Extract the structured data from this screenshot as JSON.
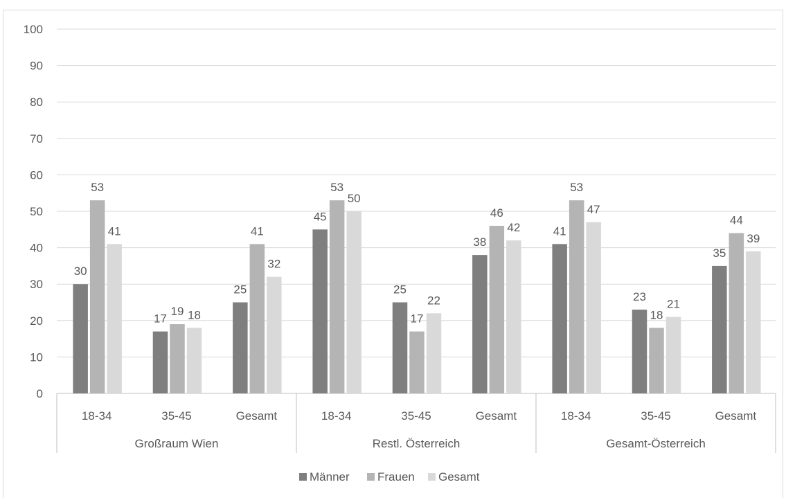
{
  "chart_data": {
    "type": "bar",
    "ylim": [
      0,
      100
    ],
    "yticks": [
      0,
      10,
      20,
      30,
      40,
      50,
      60,
      70,
      80,
      90,
      100
    ],
    "grid": true,
    "legend_position": "bottom",
    "groups": [
      {
        "label": "Großraum Wien",
        "categories": [
          "18-34",
          "35-45",
          "Gesamt"
        ]
      },
      {
        "label": "Restl. Österreich",
        "categories": [
          "18-34",
          "35-45",
          "Gesamt"
        ]
      },
      {
        "label": "Gesamt-Österreich",
        "categories": [
          "18-34",
          "35-45",
          "Gesamt"
        ]
      }
    ],
    "series": [
      {
        "name": "Männer",
        "color": "#7f7f7f",
        "values": [
          30,
          17,
          25,
          45,
          25,
          38,
          41,
          23,
          35
        ]
      },
      {
        "name": "Frauen",
        "color": "#b4b4b4",
        "values": [
          53,
          19,
          41,
          53,
          17,
          46,
          53,
          18,
          44
        ]
      },
      {
        "name": "Gesamt",
        "color": "#d9d9d9",
        "values": [
          41,
          18,
          32,
          50,
          22,
          42,
          47,
          21,
          39
        ]
      }
    ]
  }
}
